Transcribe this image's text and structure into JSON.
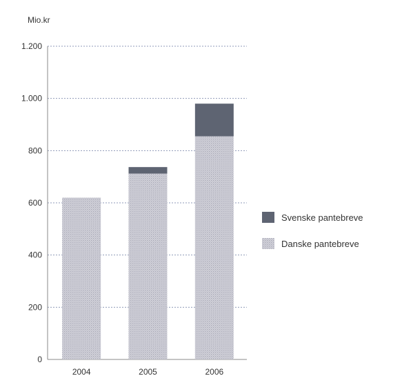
{
  "chart_data": {
    "type": "bar",
    "stacked": true,
    "unit_label": "Mio.kr",
    "categories": [
      "2004",
      "2005",
      "2006"
    ],
    "series": [
      {
        "name": "Danske pantebreve",
        "values": [
          620,
          712,
          855
        ],
        "color": "#c8c8d2",
        "pattern": "dotted"
      },
      {
        "name": "Svenske pantebreve",
        "values": [
          0,
          25,
          125
        ],
        "color": "#5e6472",
        "pattern": "solid"
      }
    ],
    "ylim": [
      0,
      1200
    ],
    "yticks": [
      {
        "value": 0,
        "label": "0"
      },
      {
        "value": 200,
        "label": "200"
      },
      {
        "value": 400,
        "label": "400"
      },
      {
        "value": 600,
        "label": "600"
      },
      {
        "value": 800,
        "label": "800"
      },
      {
        "value": 1000,
        "label": "1.000"
      },
      {
        "value": 1200,
        "label": "1.200"
      }
    ],
    "grid": true,
    "legend_position": "right",
    "legend_order": [
      "Svenske pantebreve",
      "Danske pantebreve"
    ]
  }
}
